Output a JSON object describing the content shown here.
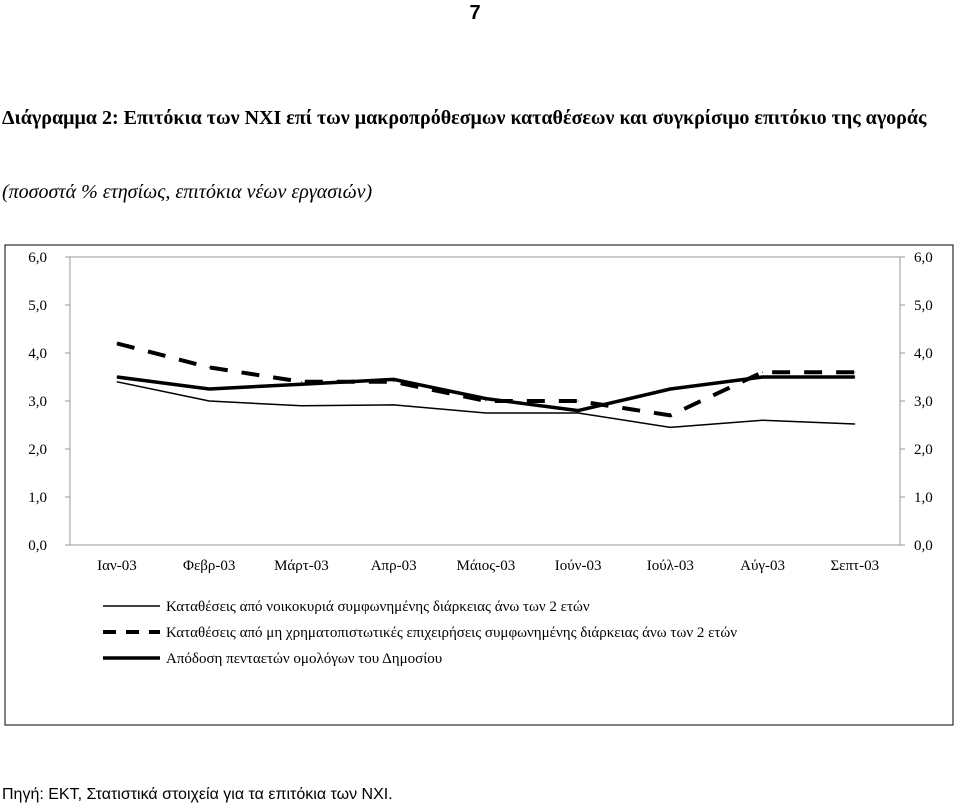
{
  "page": {
    "number": "7"
  },
  "header": {
    "title": "Διάγραμμα 2: Επιτόκια των ΝΧΙ επί των μακροπρόθεσμων καταθέσεων και συγκρίσιμο επιτόκιο της αγοράς",
    "subtitle": "(ποσοστά % ετησίως, επιτόκια νέων εργασιών)"
  },
  "chart_data": {
    "type": "line",
    "x": [
      "Ιαν-03",
      "Φεβρ-03",
      "Μάρτ-03",
      "Απρ-03",
      "Μάιος-03",
      "Ιούν-03",
      "Ιούλ-03",
      "Αύγ-03",
      "Σεπτ-03"
    ],
    "y_ticks": [
      "0,0",
      "1,0",
      "2,0",
      "3,0",
      "4,0",
      "5,0",
      "6,0"
    ],
    "ylim": [
      0,
      6
    ],
    "y_axes": "left and right, identical scale",
    "grid": false,
    "legend_position": "bottom",
    "series": [
      {
        "name": "Καταθέσεις από νοικοκυριά συμφωνημένης διάρκειας άνω των 2 ετών",
        "style": "thin-solid",
        "color": "#000000",
        "values": [
          3.4,
          3.0,
          2.9,
          2.92,
          2.75,
          2.75,
          2.45,
          2.6,
          2.52
        ]
      },
      {
        "name": "Καταθέσεις από μη χρηματοπιστωτικές επιχειρήσεις συμφωνημένης διάρκειας άνω των 2 ετών",
        "style": "dashed",
        "color": "#000000",
        "values": [
          4.2,
          3.7,
          3.4,
          3.4,
          3.0,
          3.0,
          2.7,
          3.6,
          3.6
        ]
      },
      {
        "name": "Απόδοση πενταετών ομολόγων του Δημοσίου",
        "style": "thick-solid",
        "color": "#000000",
        "values": [
          3.5,
          3.25,
          3.35,
          3.45,
          3.05,
          2.8,
          3.25,
          3.5,
          3.5
        ]
      }
    ]
  },
  "footer": {
    "source": "Πηγή: ΕΚΤ, Στατιστικά στοιχεία για τα επιτόκια των ΝΧΙ."
  }
}
